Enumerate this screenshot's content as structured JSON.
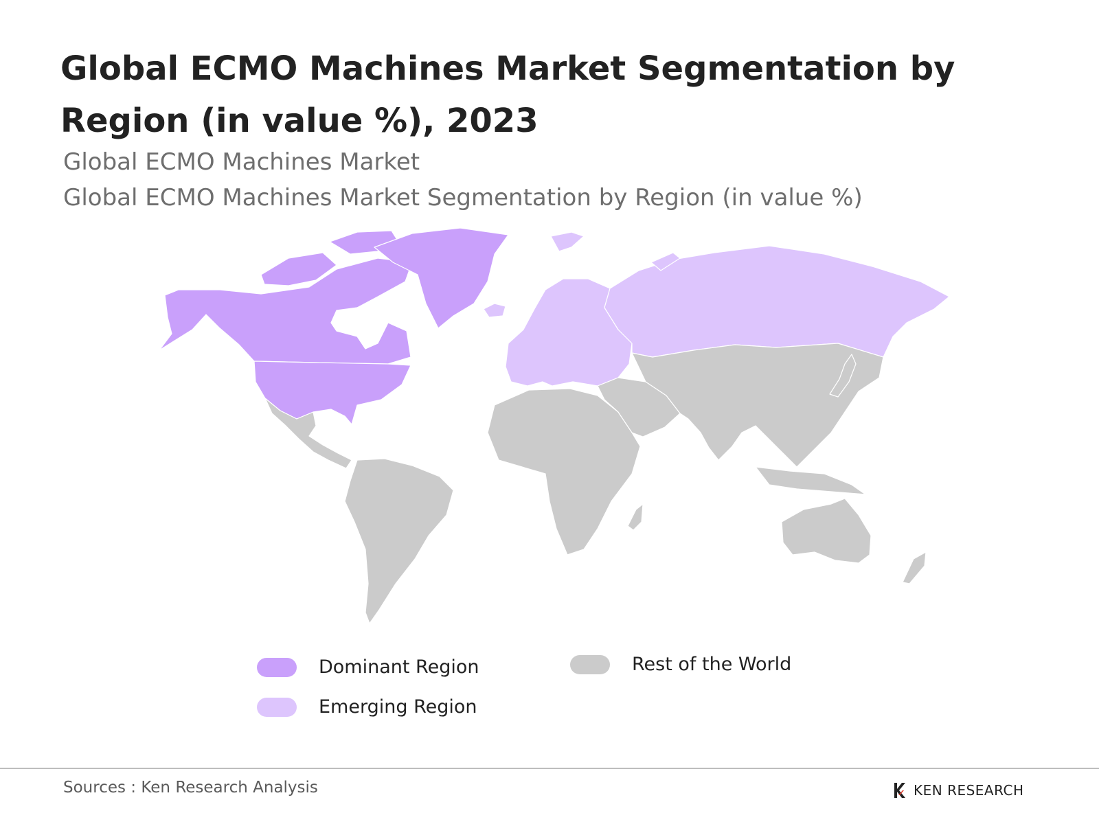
{
  "title": "Global ECMO Machines Market Segmentation by Region (in value %), 2023",
  "subtitle_1": "Global ECMO Machines Market",
  "subtitle_2": "Global ECMO Machines Market Segmentation by Region (in value %)",
  "legend": {
    "dominant": {
      "label": "Dominant Region",
      "color": "#c9a0fb"
    },
    "emerging": {
      "label": "Emerging Region",
      "color": "#ddc5fd"
    },
    "rest": {
      "label": "Rest of the World",
      "color": "#cbcbcb"
    }
  },
  "regions": {
    "dominant": [
      "North America",
      "Greenland"
    ],
    "emerging": [
      "Europe",
      "Russia"
    ],
    "rest": [
      "Latin America",
      "Africa",
      "Middle East",
      "Asia",
      "Oceania"
    ]
  },
  "footer": {
    "sources": "Sources : Ken Research Analysis",
    "brand": "KEN RESEARCH"
  }
}
